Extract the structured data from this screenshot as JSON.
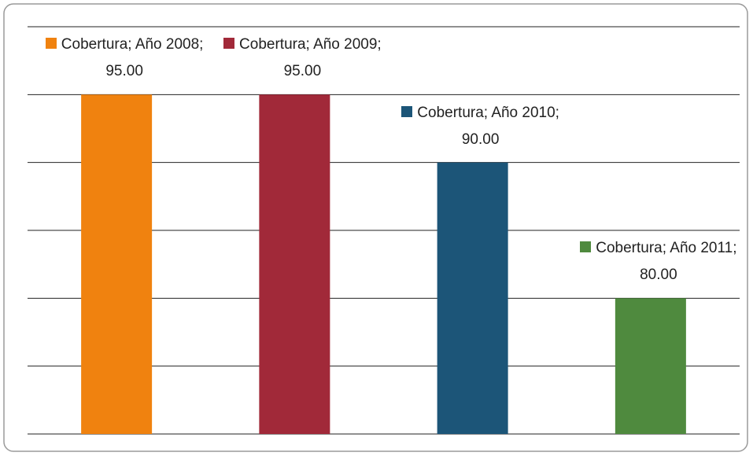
{
  "chart_data": {
    "type": "bar",
    "categories": [
      "Año 2008",
      "Año 2009",
      "Año 2010",
      "Año 2011"
    ],
    "series": [
      {
        "name": "Cobertura",
        "colors": [
          "#f0820f",
          "#a12939",
          "#1c5578",
          "#4f8a3e"
        ],
        "values": [
          95,
          95,
          90,
          80
        ],
        "value_labels": [
          "95.00",
          "95.00",
          "90.00",
          "80.00"
        ]
      }
    ],
    "label_separator": "; ",
    "ylim": [
      70,
      100
    ],
    "yticks": [
      70,
      75,
      80,
      85,
      90,
      95,
      100
    ],
    "grid": true
  }
}
